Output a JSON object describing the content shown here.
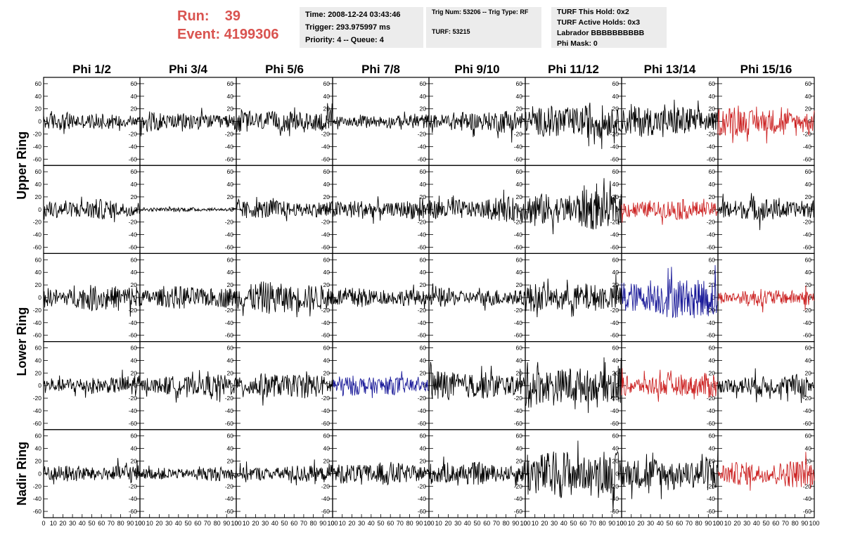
{
  "header": {
    "run_label": "Run:",
    "run_value": "39",
    "event_label": "Event:",
    "event_value": "4199306"
  },
  "info_box_1": {
    "time": "Time: 2008-12-24 03:43:46",
    "trigger": "Trigger: 293.975997 ms",
    "priority_queue": "Priority: 4 -- Queue: 4"
  },
  "info_box_2": {
    "trig": "Trig Num: 53206 -- Trig Type: RF",
    "turf": "TURF: 53215"
  },
  "info_box_3": {
    "hold": "TURF This Hold: 0x2",
    "active_holds": "TURF Active Holds: 0x3",
    "labrador": "Labrador BBBBBBBBBB",
    "phi_mask": "Phi Mask: 0"
  },
  "chart_data": {
    "type": "line",
    "column_labels": [
      "Phi 1/2",
      "Phi 3/4",
      "Phi 5/6",
      "Phi 7/8",
      "Phi 9/10",
      "Phi 11/12",
      "Phi 13/14",
      "Phi 15/16"
    ],
    "group_labels": [
      "Upper Ring",
      "Lower Ring",
      "Nadir Ring"
    ],
    "y_tick_labels": [
      "60",
      "40",
      "20",
      "0",
      "-20",
      "-40",
      "-60"
    ],
    "x_tick_labels": [
      "0",
      "10",
      "20",
      "30",
      "40",
      "50",
      "60",
      "70",
      "80",
      "90",
      "100"
    ],
    "xlim": [
      0,
      100
    ],
    "ylim": [
      -70,
      70
    ],
    "colors": {
      "default": "#000000",
      "red": "#cc2222",
      "blue": "#1a1a99"
    },
    "panels": [
      {
        "row": 0,
        "col": 0,
        "color": "default",
        "amp": 12
      },
      {
        "row": 0,
        "col": 1,
        "color": "default",
        "amp": 14
      },
      {
        "row": 0,
        "col": 2,
        "color": "default",
        "amp": 18
      },
      {
        "row": 0,
        "col": 3,
        "color": "default",
        "amp": 10
      },
      {
        "row": 0,
        "col": 4,
        "color": "default",
        "amp": 16
      },
      {
        "row": 0,
        "col": 5,
        "color": "default",
        "amp": 24
      },
      {
        "row": 0,
        "col": 6,
        "color": "default",
        "amp": 22
      },
      {
        "row": 0,
        "col": 7,
        "color": "red",
        "amp": 20
      },
      {
        "row": 1,
        "col": 0,
        "color": "default",
        "amp": 14
      },
      {
        "row": 1,
        "col": 1,
        "color": "default",
        "amp": 3
      },
      {
        "row": 1,
        "col": 2,
        "color": "default",
        "amp": 14
      },
      {
        "row": 1,
        "col": 3,
        "color": "default",
        "amp": 15
      },
      {
        "row": 1,
        "col": 4,
        "color": "default",
        "amp": 18
      },
      {
        "row": 1,
        "col": 5,
        "color": "default",
        "amp": 28
      },
      {
        "row": 1,
        "col": 6,
        "color": "red",
        "amp": 14
      },
      {
        "row": 1,
        "col": 7,
        "color": "default",
        "amp": 16
      },
      {
        "row": 2,
        "col": 0,
        "color": "default",
        "amp": 18
      },
      {
        "row": 2,
        "col": 1,
        "color": "default",
        "amp": 16
      },
      {
        "row": 2,
        "col": 2,
        "color": "default",
        "amp": 22
      },
      {
        "row": 2,
        "col": 3,
        "color": "default",
        "amp": 14
      },
      {
        "row": 2,
        "col": 4,
        "color": "default",
        "amp": 14
      },
      {
        "row": 2,
        "col": 5,
        "color": "default",
        "amp": 22
      },
      {
        "row": 2,
        "col": 6,
        "color": "blue",
        "amp": 30
      },
      {
        "row": 2,
        "col": 7,
        "color": "red",
        "amp": 12
      },
      {
        "row": 3,
        "col": 0,
        "color": "default",
        "amp": 14
      },
      {
        "row": 3,
        "col": 1,
        "color": "default",
        "amp": 15
      },
      {
        "row": 3,
        "col": 2,
        "color": "default",
        "amp": 18
      },
      {
        "row": 3,
        "col": 3,
        "color": "blue",
        "amp": 14
      },
      {
        "row": 3,
        "col": 4,
        "color": "default",
        "amp": 22
      },
      {
        "row": 3,
        "col": 5,
        "color": "default",
        "amp": 32
      },
      {
        "row": 3,
        "col": 6,
        "color": "red",
        "amp": 18
      },
      {
        "row": 3,
        "col": 7,
        "color": "default",
        "amp": 16
      },
      {
        "row": 4,
        "col": 0,
        "color": "default",
        "amp": 14
      },
      {
        "row": 4,
        "col": 1,
        "color": "default",
        "amp": 10
      },
      {
        "row": 4,
        "col": 2,
        "color": "default",
        "amp": 12
      },
      {
        "row": 4,
        "col": 3,
        "color": "default",
        "amp": 16
      },
      {
        "row": 4,
        "col": 4,
        "color": "default",
        "amp": 16
      },
      {
        "row": 4,
        "col": 5,
        "color": "default",
        "amp": 36
      },
      {
        "row": 4,
        "col": 6,
        "color": "default",
        "amp": 26
      },
      {
        "row": 4,
        "col": 7,
        "color": "red",
        "amp": 20
      }
    ]
  }
}
